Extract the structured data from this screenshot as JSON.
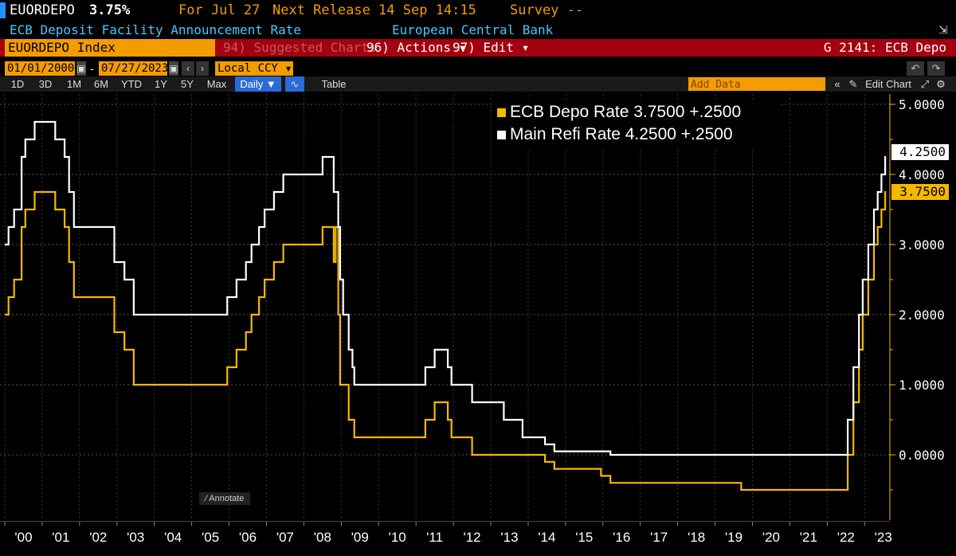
{
  "header": {
    "ticker_short": "EUORDEPO",
    "last_value": "3.75%",
    "for_date": "For Jul 27",
    "next_release": "Next Release 14 Sep 14:15",
    "survey": "Survey --",
    "description": "ECB Deposit Facility Announcement Rate",
    "source": "European Central Bank"
  },
  "toolbar": {
    "security": "EUORDEPO Index",
    "suggested": "94) Suggested Charts",
    "actions": "96) Actions ▾",
    "edit": "97) Edit ▾",
    "function": "G 2141: ECB Depo"
  },
  "range": {
    "start": "01/01/2000",
    "end": "07/27/2023",
    "currency": "Local CCY",
    "periods": [
      "1D",
      "3D",
      "1M",
      "6M",
      "YTD",
      "1Y",
      "5Y",
      "Max"
    ],
    "frequency": "Daily ▼",
    "table_label": "Table",
    "add_data_placeholder": "Add Data",
    "edit_chart": "Edit Chart"
  },
  "annotate_label": "Annotate",
  "colors": {
    "depo": "#f5b800",
    "refi": "#ffffff",
    "ticker_bg": "#f39c00",
    "toolbar_bg": "#a4000f",
    "axis": "#f5b800"
  },
  "legend": [
    {
      "label": "ECB Depo Rate 3.7500 +.2500",
      "color": "#f5b800"
    },
    {
      "label": "Main Refi Rate 4.2500 +.2500",
      "color": "#ffffff"
    }
  ],
  "chart_data": {
    "type": "line",
    "title": "",
    "x_start": 2000.0,
    "x_end": 2023.57,
    "ylim": [
      -0.7,
      5.15
    ],
    "y_ticks": [
      "5.0000",
      "4.0000",
      "3.0000",
      "2.0000",
      "1.0000",
      "0.0000"
    ],
    "x_ticks": [
      "'00",
      "'01",
      "'02",
      "'03",
      "'04",
      "'05",
      "'06",
      "'07",
      "'08",
      "'09",
      "'10",
      "'11",
      "'12",
      "'13",
      "'14",
      "'15",
      "'16",
      "'17",
      "'18",
      "'19",
      "'20",
      "'21",
      "'22",
      "'23"
    ],
    "last_tags": [
      {
        "value": "4.2500",
        "series": "Main Refi Rate"
      },
      {
        "value": "3.7500",
        "series": "ECB Depo Rate"
      }
    ],
    "series": [
      {
        "name": "ECB Depo Rate",
        "steps": [
          [
            2000.0,
            2.0
          ],
          [
            2000.1,
            2.25
          ],
          [
            2000.25,
            2.5
          ],
          [
            2000.45,
            3.25
          ],
          [
            2000.55,
            3.5
          ],
          [
            2000.8,
            3.75
          ],
          [
            2001.35,
            3.5
          ],
          [
            2001.6,
            3.25
          ],
          [
            2001.72,
            2.75
          ],
          [
            2001.85,
            2.25
          ],
          [
            2002.93,
            1.75
          ],
          [
            2003.2,
            1.5
          ],
          [
            2003.45,
            1.0
          ],
          [
            2005.95,
            1.25
          ],
          [
            2006.2,
            1.5
          ],
          [
            2006.45,
            1.75
          ],
          [
            2006.6,
            2.0
          ],
          [
            2006.8,
            2.25
          ],
          [
            2006.95,
            2.5
          ],
          [
            2007.2,
            2.75
          ],
          [
            2007.45,
            3.0
          ],
          [
            2008.5,
            3.25
          ],
          [
            2008.8,
            2.75
          ],
          [
            2008.85,
            3.25
          ],
          [
            2008.92,
            2.0
          ],
          [
            2008.97,
            1.0
          ],
          [
            2009.05,
            1.0
          ],
          [
            2009.2,
            0.5
          ],
          [
            2009.35,
            0.25
          ],
          [
            2011.25,
            0.5
          ],
          [
            2011.5,
            0.75
          ],
          [
            2011.85,
            0.5
          ],
          [
            2011.95,
            0.25
          ],
          [
            2012.5,
            0.0
          ],
          [
            2014.45,
            -0.1
          ],
          [
            2014.7,
            -0.2
          ],
          [
            2015.95,
            -0.3
          ],
          [
            2016.2,
            -0.4
          ],
          [
            2019.7,
            -0.5
          ],
          [
            2022.55,
            0.0
          ],
          [
            2022.7,
            0.75
          ],
          [
            2022.85,
            1.5
          ],
          [
            2022.95,
            2.0
          ],
          [
            2023.1,
            2.5
          ],
          [
            2023.25,
            3.0
          ],
          [
            2023.35,
            3.25
          ],
          [
            2023.45,
            3.5
          ],
          [
            2023.55,
            3.75
          ]
        ]
      },
      {
        "name": "Main Refi Rate",
        "steps": [
          [
            2000.0,
            3.0
          ],
          [
            2000.1,
            3.25
          ],
          [
            2000.25,
            3.5
          ],
          [
            2000.45,
            4.25
          ],
          [
            2000.55,
            4.5
          ],
          [
            2000.8,
            4.75
          ],
          [
            2001.35,
            4.5
          ],
          [
            2001.6,
            4.25
          ],
          [
            2001.72,
            3.75
          ],
          [
            2001.85,
            3.25
          ],
          [
            2002.93,
            2.75
          ],
          [
            2003.2,
            2.5
          ],
          [
            2003.45,
            2.0
          ],
          [
            2005.95,
            2.25
          ],
          [
            2006.2,
            2.5
          ],
          [
            2006.45,
            2.75
          ],
          [
            2006.6,
            3.0
          ],
          [
            2006.8,
            3.25
          ],
          [
            2006.95,
            3.5
          ],
          [
            2007.2,
            3.75
          ],
          [
            2007.45,
            4.0
          ],
          [
            2008.5,
            4.25
          ],
          [
            2008.8,
            3.75
          ],
          [
            2008.92,
            3.25
          ],
          [
            2008.97,
            2.5
          ],
          [
            2009.05,
            2.0
          ],
          [
            2009.2,
            1.5
          ],
          [
            2009.3,
            1.25
          ],
          [
            2009.35,
            1.0
          ],
          [
            2011.25,
            1.25
          ],
          [
            2011.5,
            1.5
          ],
          [
            2011.85,
            1.25
          ],
          [
            2011.95,
            1.0
          ],
          [
            2012.5,
            0.75
          ],
          [
            2013.35,
            0.5
          ],
          [
            2013.85,
            0.25
          ],
          [
            2014.45,
            0.15
          ],
          [
            2014.7,
            0.05
          ],
          [
            2016.2,
            0.0
          ],
          [
            2022.55,
            0.5
          ],
          [
            2022.7,
            1.25
          ],
          [
            2022.85,
            2.0
          ],
          [
            2022.95,
            2.5
          ],
          [
            2023.1,
            3.0
          ],
          [
            2023.25,
            3.5
          ],
          [
            2023.35,
            3.75
          ],
          [
            2023.45,
            4.0
          ],
          [
            2023.55,
            4.25
          ]
        ]
      }
    ]
  }
}
